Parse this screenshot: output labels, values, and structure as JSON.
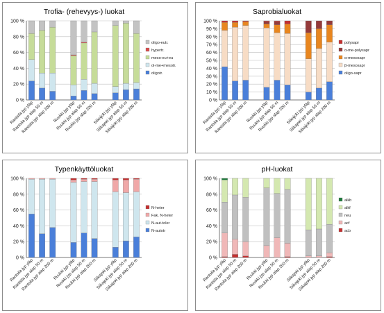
{
  "colors": {
    "panel_border": "#8c8c8c",
    "grid": "#bfbfbf",
    "axis": "#555555"
  },
  "chart_data": [
    {
      "type": "bar",
      "stacked": true,
      "percent": true,
      "title": "Trofia-  (rehevyys-) luokat",
      "ylim": [
        0,
        100
      ],
      "yticks": [
        "0 %",
        "20 %",
        "40 %",
        "60 %",
        "80 %",
        "100 %"
      ],
      "categories": [
        "Rantsila jyp yläp",
        "Rantsila jyp alap 50 m",
        "Rantsila jyp alap 200 m",
        "",
        "Ruukki jyp yläp",
        "Ruukki jyp alap 50 m",
        "Ruukki jyp alap 200 m",
        "",
        "Siikajoki jyp yläp",
        "Siikajoki jyp alap 50 m",
        "Siikajoki jyp alap 200 m"
      ],
      "legend_position": "right",
      "series": [
        {
          "name": "oligotr.",
          "color": "#4a7fd9",
          "values": [
            24,
            15,
            11,
            null,
            5,
            12,
            8,
            null,
            9,
            13,
            14
          ]
        },
        {
          "name": "ol-me+mesotr.",
          "color": "#cfe6ee",
          "values": [
            27,
            19,
            23,
            null,
            14,
            14,
            13,
            null,
            8,
            8,
            8
          ]
        },
        {
          "name": "meso-eu+eu",
          "color": "#c6dc99",
          "values": [
            33,
            54,
            58,
            null,
            37,
            46,
            65,
            null,
            77,
            76,
            62
          ]
        },
        {
          "name": "hypertr.",
          "color": "#d94a4a",
          "values": [
            0,
            0,
            0,
            null,
            1,
            1,
            0,
            null,
            0,
            0,
            0
          ]
        },
        {
          "name": "oligo-eutr.",
          "color": "#c3c3c3",
          "values": [
            16,
            12,
            8,
            null,
            43,
            27,
            14,
            null,
            6,
            3,
            16
          ]
        }
      ]
    },
    {
      "type": "bar",
      "stacked": true,
      "percent": true,
      "title": "Saprobialuokat",
      "ylim": [
        0,
        100
      ],
      "yticks": [
        "0 %",
        "10 %",
        "20 %",
        "30 %",
        "40 %",
        "50 %",
        "60 %",
        "70 %",
        "80 %",
        "90 %",
        "100 %"
      ],
      "categories": [
        "Rantsila jyp yläp",
        "Rantsila jyp alap 50 m",
        "Rantsila jyp alap 200 m",
        "",
        "Ruukki jyp yläp",
        "Ruukki jyp alap 50 m",
        "Ruukki jyp alap 200 m",
        "",
        "Siikajoki jyp yläp",
        "Siikajoki jyp alap 50 m",
        "Siikajoki jyp alap 200 m"
      ],
      "legend_position": "right",
      "series": [
        {
          "name": "oligo-sapr",
          "color": "#4a7fd9",
          "values": [
            42,
            24,
            25,
            null,
            16,
            25,
            19,
            null,
            10,
            15,
            23
          ]
        },
        {
          "name": "β-mesosapr",
          "color": "#f7dcc5",
          "values": [
            46,
            68,
            69,
            null,
            75,
            60,
            65,
            null,
            42,
            50,
            50
          ]
        },
        {
          "name": "α-mesosapr",
          "color": "#e8861f",
          "values": [
            10,
            6,
            5,
            null,
            5,
            10,
            12,
            null,
            33,
            25,
            22
          ]
        },
        {
          "name": "α-me-polysapr",
          "color": "#943a3a",
          "values": [
            0,
            0,
            0,
            null,
            3,
            4,
            0,
            null,
            15,
            10,
            5
          ]
        },
        {
          "name": "polysapr",
          "color": "#c43030",
          "values": [
            2,
            2,
            1,
            null,
            1,
            1,
            4,
            null,
            0,
            0,
            0
          ]
        }
      ]
    },
    {
      "type": "bar",
      "stacked": true,
      "percent": true,
      "title": "Typenkäyttöluokat",
      "ylim": [
        0,
        100
      ],
      "yticks": [
        "0 %",
        "20 %",
        "40 %",
        "60 %",
        "80 %",
        "100 %"
      ],
      "categories": [
        "Rantsila jyp yläp",
        "Rantsila jyp alap 50 m",
        "Rantsila jyp alap 200 m",
        "",
        "Ruukki jyp yläp",
        "Ruukki jyp alap 50 m",
        "Ruukki jyp alap 200 m",
        "",
        "Siikajoki jyp yläp",
        "Siikajoki jyp alap 50 m",
        "Siikajoki jyp alap 200 m"
      ],
      "legend_position": "right",
      "series": [
        {
          "name": "N-autotr",
          "color": "#4a7fd9",
          "values": [
            55,
            30,
            38,
            null,
            19,
            31,
            24,
            null,
            13,
            21,
            26
          ]
        },
        {
          "name": "N-aut-toler",
          "color": "#cfe6ee",
          "values": [
            44,
            69,
            61,
            null,
            76,
            65,
            72,
            null,
            70,
            61,
            57
          ]
        },
        {
          "name": "Fak. N-heter",
          "color": "#f0a8a8",
          "values": [
            1,
            1,
            1,
            null,
            3,
            3,
            3,
            null,
            15,
            16,
            16
          ]
        },
        {
          "name": "N-heter",
          "color": "#c43030",
          "values": [
            0,
            0,
            0,
            null,
            2,
            1,
            1,
            null,
            2,
            2,
            1
          ]
        }
      ]
    },
    {
      "type": "bar",
      "stacked": true,
      "percent": true,
      "title": "pH-luokat",
      "ylim": [
        0,
        100
      ],
      "yticks": [
        "0 %",
        "20 %",
        "40 %",
        "60 %",
        "80 %",
        "100 %"
      ],
      "categories": [
        "Rantsila jyp yläp",
        "Rantsila jyp alap 50 m",
        "Rantsila jyp alap 200 m",
        "",
        "Ruukki jyp yläp",
        "Ruukki jyp alap 50 m",
        "Ruukki jyp alap 200 m",
        "",
        "Siikajoki jyp yläp",
        "Siikajoki jyp alap 50 m",
        "Siikajoki jyp alap 200 m"
      ],
      "legend_position": "right",
      "series": [
        {
          "name": "acb",
          "color": "#c43030",
          "values": [
            1,
            4,
            2,
            null,
            0,
            0,
            1,
            null,
            0,
            0,
            1
          ]
        },
        {
          "name": "acf",
          "color": "#f0b8b8",
          "values": [
            30,
            19,
            18,
            null,
            15,
            25,
            17,
            null,
            2,
            2,
            5
          ]
        },
        {
          "name": "neu",
          "color": "#c0c0c0",
          "values": [
            39,
            56,
            56,
            null,
            73,
            56,
            68,
            null,
            33,
            34,
            36
          ]
        },
        {
          "name": "alkf",
          "color": "#d4e8b0",
          "values": [
            28,
            21,
            24,
            null,
            12,
            19,
            14,
            null,
            65,
            64,
            58
          ]
        },
        {
          "name": "alkb",
          "color": "#1e7a3c",
          "values": [
            2,
            0,
            0,
            null,
            0,
            0,
            0,
            null,
            0,
            0,
            0
          ]
        }
      ]
    }
  ]
}
